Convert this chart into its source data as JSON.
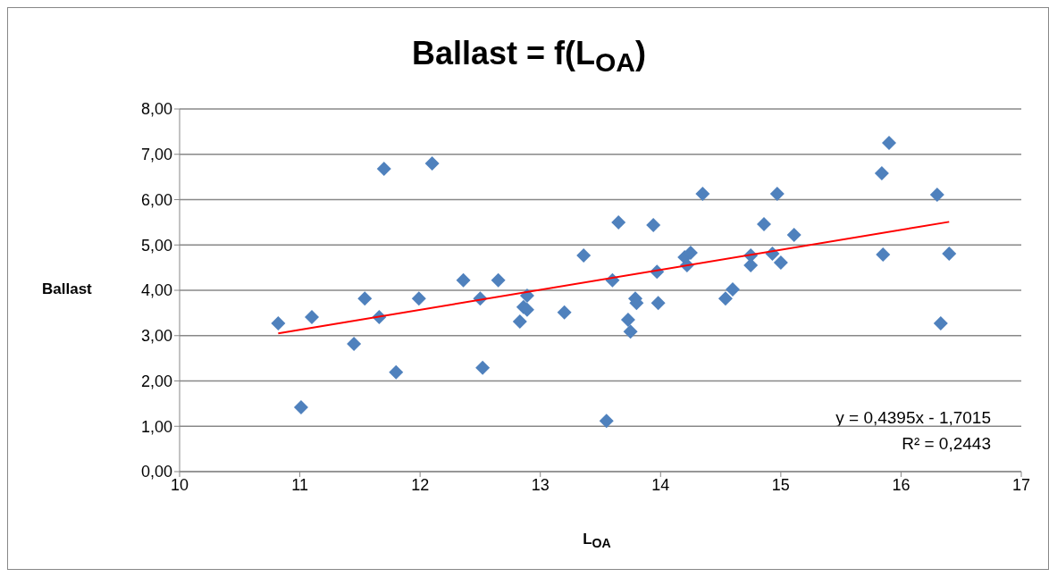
{
  "chart_data": {
    "type": "scatter",
    "title": "Ballast = f(L$_{OA}$)",
    "xlabel": "L$_{OA}$",
    "ylabel": "Ballast",
    "xlim": [
      10,
      17
    ],
    "xticks": [
      10,
      11,
      12,
      13,
      14,
      15,
      16,
      17
    ],
    "ylim": [
      0,
      8
    ],
    "yticks": [
      {
        "value": 0,
        "label": "0,00"
      },
      {
        "value": 1,
        "label": "1,00"
      },
      {
        "value": 2,
        "label": "2,00"
      },
      {
        "value": 3,
        "label": "3,00"
      },
      {
        "value": 4,
        "label": "4,00"
      },
      {
        "value": 5,
        "label": "5,00"
      },
      {
        "value": 6,
        "label": "6,00"
      },
      {
        "value": 7,
        "label": "7,00"
      },
      {
        "value": 8,
        "label": "8,00"
      }
    ],
    "grid": "y",
    "legend": false,
    "series": [
      {
        "marker": "diamond",
        "color": "#4f81bd",
        "x": [
          10.82,
          11.01,
          11.1,
          11.45,
          11.54,
          11.66,
          11.7,
          11.8,
          11.99,
          12.1,
          12.36,
          12.5,
          12.52,
          12.65,
          12.83,
          12.86,
          12.89,
          12.89,
          13.2,
          13.36,
          13.55,
          13.6,
          13.65,
          13.73,
          13.75,
          13.79,
          13.8,
          13.94,
          13.97,
          13.98,
          14.2,
          14.22,
          14.25,
          14.35,
          14.54,
          14.6,
          14.75,
          14.75,
          14.86,
          14.93,
          14.97,
          15.0,
          15.11,
          15.84,
          15.85,
          15.9,
          16.3,
          16.33,
          16.4
        ],
        "values": [
          3.27,
          1.42,
          3.41,
          2.82,
          3.82,
          3.41,
          6.68,
          2.19,
          3.82,
          6.8,
          4.22,
          3.82,
          2.29,
          4.22,
          3.31,
          3.63,
          3.88,
          3.57,
          3.51,
          4.77,
          1.12,
          4.22,
          5.5,
          3.35,
          3.09,
          3.82,
          3.72,
          5.44,
          4.41,
          3.72,
          4.73,
          4.55,
          4.83,
          6.13,
          3.82,
          4.02,
          4.55,
          4.77,
          5.46,
          4.81,
          6.13,
          4.61,
          5.22,
          6.58,
          4.79,
          7.25,
          6.11,
          3.27,
          4.81
        ]
      },
      {
        "type": "line",
        "marker": "none",
        "color": "#ff0000",
        "x": [
          10.82,
          16.4
        ],
        "values": [
          3.05,
          5.51
        ]
      }
    ],
    "annotations": [
      "y = 0,4395x - 1,7015",
      "R² = 0,2443"
    ]
  }
}
